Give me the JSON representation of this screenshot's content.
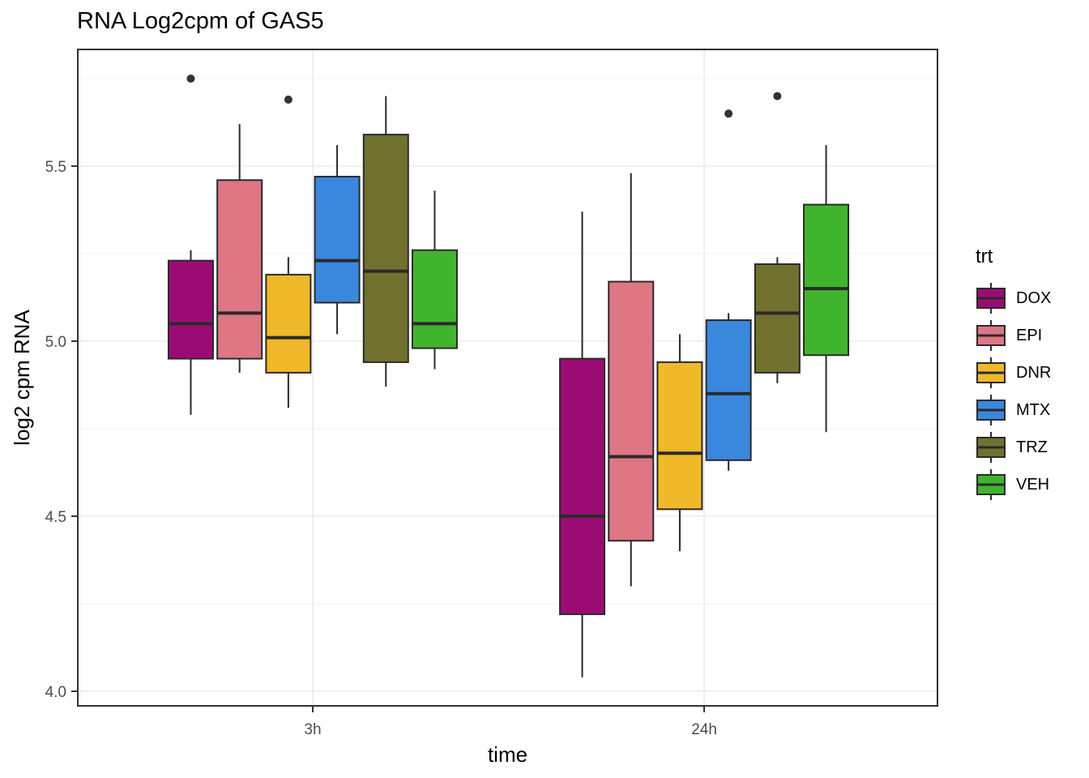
{
  "chart_data": {
    "type": "boxplot",
    "title": "RNA Log2cpm of GAS5",
    "xlabel": "time",
    "ylabel": "log2 cpm RNA",
    "legend_title": "trt",
    "legend_position": "right",
    "grid": true,
    "groups": [
      "3h",
      "24h"
    ],
    "group_centers_frac": [
      0.2733,
      0.7286
    ],
    "ylim": [
      3.9583,
      5.8333
    ],
    "yticks": [
      4.0,
      4.5,
      5.0,
      5.5
    ],
    "ytick_labels": [
      "4.0",
      "4.5",
      "5.0",
      "5.5"
    ],
    "yminor": [
      4.25,
      4.75,
      5.25,
      5.75
    ],
    "series": [
      {
        "name": "DOX",
        "color": "#9A0C74",
        "boxes": [
          {
            "group": "3h",
            "whisker_low": 4.79,
            "q1": 4.95,
            "median": 5.05,
            "q3": 5.23,
            "whisker_high": 5.26,
            "outliers": [
              5.75
            ]
          },
          {
            "group": "24h",
            "whisker_low": 4.04,
            "q1": 4.22,
            "median": 4.5,
            "q3": 4.95,
            "whisker_high": 5.37,
            "outliers": []
          }
        ]
      },
      {
        "name": "EPI",
        "color": "#DE7683",
        "boxes": [
          {
            "group": "3h",
            "whisker_low": 4.91,
            "q1": 4.95,
            "median": 5.08,
            "q3": 5.46,
            "whisker_high": 5.62,
            "outliers": []
          },
          {
            "group": "24h",
            "whisker_low": 4.3,
            "q1": 4.43,
            "median": 4.67,
            "q3": 5.17,
            "whisker_high": 5.48,
            "outliers": []
          }
        ]
      },
      {
        "name": "DNR",
        "color": "#F0B929",
        "boxes": [
          {
            "group": "3h",
            "whisker_low": 4.81,
            "q1": 4.91,
            "median": 5.01,
            "q3": 5.19,
            "whisker_high": 5.24,
            "outliers": [
              5.69
            ]
          },
          {
            "group": "24h",
            "whisker_low": 4.4,
            "q1": 4.52,
            "median": 4.68,
            "q3": 4.94,
            "whisker_high": 5.02,
            "outliers": []
          }
        ]
      },
      {
        "name": "MTX",
        "color": "#3A87DE",
        "boxes": [
          {
            "group": "3h",
            "whisker_low": 5.02,
            "q1": 5.11,
            "median": 5.23,
            "q3": 5.47,
            "whisker_high": 5.56,
            "outliers": []
          },
          {
            "group": "24h",
            "whisker_low": 4.63,
            "q1": 4.66,
            "median": 4.85,
            "q3": 5.06,
            "whisker_high": 5.08,
            "outliers": [
              5.65
            ]
          }
        ]
      },
      {
        "name": "TRZ",
        "color": "#70712F",
        "boxes": [
          {
            "group": "3h",
            "whisker_low": 4.87,
            "q1": 4.94,
            "median": 5.2,
            "q3": 5.59,
            "whisker_high": 5.7,
            "outliers": []
          },
          {
            "group": "24h",
            "whisker_low": 4.88,
            "q1": 4.91,
            "median": 5.08,
            "q3": 5.22,
            "whisker_high": 5.24,
            "outliers": [
              5.7
            ]
          }
        ]
      },
      {
        "name": "VEH",
        "color": "#41B42E",
        "boxes": [
          {
            "group": "3h",
            "whisker_low": 4.92,
            "q1": 4.98,
            "median": 5.05,
            "q3": 5.26,
            "whisker_high": 5.43,
            "outliers": []
          },
          {
            "group": "24h",
            "whisker_low": 4.74,
            "q1": 4.96,
            "median": 5.15,
            "q3": 5.39,
            "whisker_high": 5.56,
            "outliers": []
          }
        ]
      }
    ],
    "style": {
      "panel_bg": "#FFFFFF",
      "panel_border": "#333333",
      "grid_major": "#E9E9E9",
      "grid_minor": "#F4F4F4",
      "box_outline": "#2A2A2A",
      "outlier_color": "#333333",
      "tick_color": "#333333",
      "tick_label_color": "#4D4D4D",
      "text_color": "#000000"
    }
  }
}
